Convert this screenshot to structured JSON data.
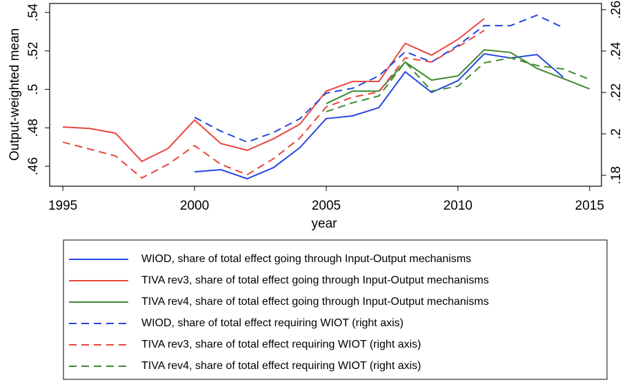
{
  "chart_data": {
    "type": "line",
    "x_label": "year",
    "y_label": "Output-weighted mean",
    "x": [
      1995,
      1996,
      1997,
      1998,
      1999,
      2000,
      2001,
      2002,
      2003,
      2004,
      2005,
      2006,
      2007,
      2008,
      2009,
      2010,
      2011,
      2012,
      2013,
      2014,
      2015
    ],
    "xlim": [
      1994.5,
      2015.45
    ],
    "xticks": [
      1995,
      2000,
      2005,
      2010,
      2015
    ],
    "ylim": [
      0.4496,
      0.5447
    ],
    "yticks": [
      {
        "value": 0.46,
        "label": ".46"
      },
      {
        "value": 0.48,
        "label": ".48"
      },
      {
        "value": 0.5,
        "label": ".5"
      },
      {
        "value": 0.52,
        "label": ".52"
      },
      {
        "value": 0.54,
        "label": ".54"
      }
    ],
    "y2lim": [
      0.1747,
      0.263
    ],
    "y2ticks": [
      {
        "value": 0.18,
        "label": ".18"
      },
      {
        "value": 0.2,
        "label": ".2"
      },
      {
        "value": 0.22,
        "label": ".22"
      },
      {
        "value": 0.24,
        "label": ".24"
      },
      {
        "value": 0.26,
        "label": ".26"
      }
    ],
    "series": [
      {
        "name": "WIOD, share of total effect going through Input-Output mechanisms",
        "color": "#2347e0",
        "linestyle": "solid",
        "values": [
          null,
          null,
          null,
          null,
          null,
          0.4571,
          0.4582,
          0.4535,
          0.4593,
          0.4697,
          0.4848,
          0.4862,
          0.4905,
          0.5091,
          0.4984,
          0.5045,
          0.5185,
          0.5163,
          0.5181,
          0.5063,
          null
        ]
      },
      {
        "name": "TIVA rev3, share of total effect going through Input-Output mechanisms",
        "color": "#e8453c",
        "linestyle": "solid",
        "values": [
          0.4804,
          0.4797,
          0.4772,
          0.4625,
          0.4693,
          0.484,
          0.4718,
          0.4683,
          0.4743,
          0.4819,
          0.4991,
          0.5041,
          0.5041,
          0.5239,
          0.5178,
          0.526,
          0.5368,
          null,
          null,
          null,
          null
        ]
      },
      {
        "name": "TIVA rev4, share of total effect going through Input-Output mechanisms",
        "color": "#3d8a2f",
        "linestyle": "solid",
        "values": [
          null,
          null,
          null,
          null,
          null,
          null,
          null,
          null,
          null,
          null,
          0.4926,
          0.4991,
          0.4991,
          0.5142,
          0.5048,
          0.507,
          0.5206,
          0.5192,
          0.5109,
          0.5056,
          0.5002
        ]
      },
      {
        "name": "WIOD, share of total effect requiring WIOT (right axis)",
        "color": "#2347e0",
        "linestyle": "dashed",
        "axis": "y2",
        "values": [
          null,
          null,
          null,
          null,
          null,
          0.208,
          0.2013,
          0.196,
          0.2007,
          0.2073,
          0.2197,
          0.222,
          0.228,
          0.2397,
          0.2347,
          0.2427,
          0.2523,
          0.2523,
          0.2573,
          0.2513,
          null
        ]
      },
      {
        "name": "TIVA rev3, share of total effect requiring WIOT (right axis)",
        "color": "#e8453c",
        "linestyle": "dashed",
        "axis": "y2",
        "values": [
          0.196,
          0.1927,
          0.1893,
          0.1787,
          0.1853,
          0.1943,
          0.1853,
          0.1803,
          0.188,
          0.198,
          0.213,
          0.2177,
          0.2203,
          0.2367,
          0.2347,
          0.242,
          0.25,
          null,
          null,
          null,
          null
        ]
      },
      {
        "name": "TIVA rev4, share of total effect requiring WIOT (right axis)",
        "color": "#3d8a2f",
        "linestyle": "dashed",
        "axis": "y2",
        "values": [
          null,
          null,
          null,
          null,
          null,
          null,
          null,
          null,
          null,
          null,
          0.2107,
          0.215,
          0.2183,
          0.2347,
          0.2207,
          0.223,
          0.2343,
          0.2367,
          0.233,
          0.2313,
          0.2263
        ]
      }
    ]
  }
}
